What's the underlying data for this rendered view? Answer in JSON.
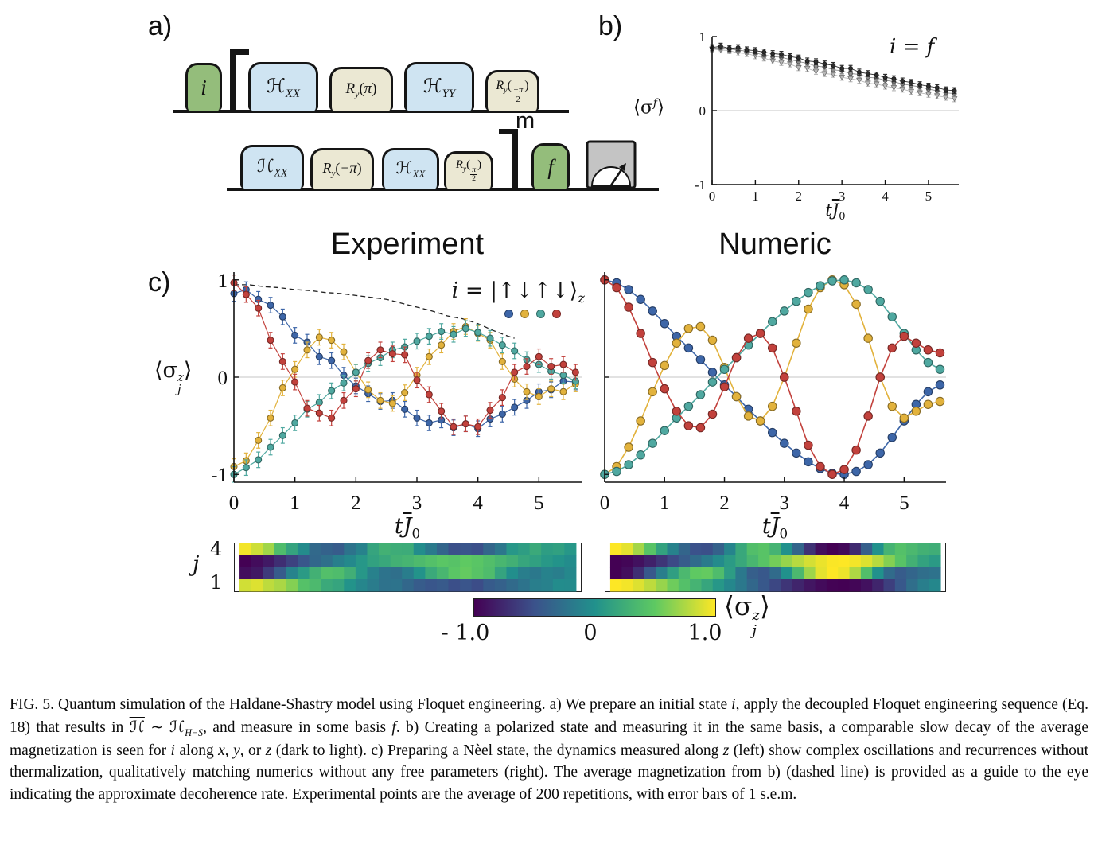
{
  "figure_label": {
    "a": "a)",
    "b": "b)",
    "c": "c)"
  },
  "pulse_sequence": {
    "initial_state": "i",
    "final_state": "f",
    "repeat_exponent": "m",
    "row1_pulses": [
      {
        "main": "ℋ",
        "sub": "XX"
      },
      {
        "main": "R",
        "sub": "y",
        "open": "(",
        "arg": "π",
        "close": ")"
      },
      {
        "main": "ℋ",
        "sub": "YY"
      },
      {
        "main": "R",
        "sub": "y",
        "open": "(",
        "num": "−π",
        "den": "2",
        "close": ")"
      }
    ],
    "row2_pulses": [
      {
        "main": "ℋ",
        "sub": "XX"
      },
      {
        "main": "R",
        "sub": "y",
        "open": "(",
        "arg": "−π",
        "close": ")"
      },
      {
        "main": "ℋ",
        "sub": "XX"
      },
      {
        "main": "R",
        "sub": "y",
        "open": "(",
        "num": "π",
        "den": "2",
        "close": ")"
      }
    ],
    "colors": {
      "state_pulse": "#94bd7b",
      "hamiltonian_pulse": "#cfe4f2",
      "rotation_pulse": "#ebe8d3",
      "meter_body": "#c4c4c4"
    }
  },
  "labels": {
    "titles": {
      "experiment": "Experiment",
      "numeric": "Numeric"
    },
    "sigma_f": {
      "pre": "⟨σ",
      "sup": "f",
      "post": "⟩"
    },
    "sigma_jz": {
      "pre": "⟨σ",
      "sup": "z",
      "sub": "j",
      "post": "⟩"
    },
    "t_axis": {
      "t": "t",
      "J": "J",
      "sub": "0"
    },
    "b_annotation": {
      "i": "i",
      "eq": " = ",
      "f": "f"
    },
    "legend": {
      "i": "i",
      "eq": " = |",
      "arrows": "↑↓↑↓",
      "ket": "⟩",
      "sub": "z"
    },
    "heat_axis": {
      "top": "4",
      "bottom": "1",
      "label": "j"
    },
    "colorbar_ticks": {
      "neg": "- 1.0",
      "zero": "0",
      "pos": "1.0"
    }
  },
  "chart_data": [
    {
      "id": "panel-b",
      "type": "scatter",
      "annotation": "i = f",
      "xlabel": "t J̄0",
      "ylabel": "⟨σ^f⟩",
      "xlim": [
        0,
        5.7
      ],
      "ylim": [
        -1,
        1
      ],
      "xticks": [
        0,
        1,
        2,
        3,
        4,
        5
      ],
      "yticks": [
        1,
        0,
        -1
      ],
      "grid": "zero line only",
      "x": [
        0,
        0.2,
        0.4,
        0.6,
        0.8,
        1,
        1.2,
        1.4,
        1.6,
        1.8,
        2,
        2.2,
        2.4,
        2.6,
        2.8,
        3,
        3.2,
        3.4,
        3.6,
        3.8,
        4,
        4.2,
        4.4,
        4.6,
        4.8,
        5,
        5.2,
        5.4,
        5.6
      ],
      "series": [
        {
          "name": "i along x (dark)",
          "color": "#2e2e2e",
          "marker": "circle",
          "values": [
            0.85,
            0.87,
            0.84,
            0.85,
            0.82,
            0.81,
            0.79,
            0.77,
            0.76,
            0.73,
            0.71,
            0.67,
            0.66,
            0.63,
            0.61,
            0.57,
            0.57,
            0.52,
            0.5,
            0.48,
            0.45,
            0.43,
            0.4,
            0.38,
            0.35,
            0.33,
            0.31,
            0.28,
            0.27
          ]
        },
        {
          "name": "i along y (medium)",
          "color": "#8d8d8d",
          "marker": "circle",
          "values": [
            0.84,
            0.85,
            0.83,
            0.82,
            0.8,
            0.78,
            0.75,
            0.73,
            0.72,
            0.69,
            0.66,
            0.64,
            0.6,
            0.59,
            0.55,
            0.54,
            0.5,
            0.49,
            0.45,
            0.44,
            0.41,
            0.39,
            0.36,
            0.34,
            0.32,
            0.29,
            0.27,
            0.24,
            0.23
          ]
        },
        {
          "name": "i along z (light)",
          "color": "#b9b9b9",
          "marker": "triangle-down",
          "values": [
            0.83,
            0.82,
            0.81,
            0.78,
            0.77,
            0.74,
            0.71,
            0.67,
            0.65,
            0.63,
            0.58,
            0.57,
            0.53,
            0.5,
            0.49,
            0.45,
            0.43,
            0.41,
            0.37,
            0.36,
            0.33,
            0.31,
            0.29,
            0.26,
            0.24,
            0.22,
            0.2,
            0.18,
            0.16
          ]
        }
      ],
      "error_bar": 0.04
    },
    {
      "id": "experiment",
      "type": "scatter",
      "title": "Experiment",
      "annotation": "i = |↑↓↑↓⟩z",
      "xlim": [
        0,
        5.7
      ],
      "ylim": [
        -1.08,
        1.08
      ],
      "xticks": [
        0,
        1,
        2,
        3,
        4,
        5
      ],
      "yticks": [
        1,
        0,
        -1
      ],
      "x": [
        0,
        0.2,
        0.4,
        0.6,
        0.8,
        1,
        1.2,
        1.4,
        1.6,
        1.8,
        2,
        2.2,
        2.4,
        2.6,
        2.8,
        3,
        3.2,
        3.4,
        3.6,
        3.8,
        4,
        4.2,
        4.4,
        4.6,
        4.8,
        5,
        5.2,
        5.4,
        5.6
      ],
      "series": [
        {
          "name": "site 1",
          "color": "#3d66a8",
          "values": [
            0.86,
            0.9,
            0.8,
            0.74,
            0.62,
            0.43,
            0.36,
            0.21,
            0.17,
            0.02,
            -0.09,
            -0.17,
            -0.25,
            -0.24,
            -0.33,
            -0.42,
            -0.47,
            -0.44,
            -0.52,
            -0.48,
            -0.53,
            -0.43,
            -0.38,
            -0.31,
            -0.24,
            -0.15,
            -0.13,
            -0.04,
            -0.05
          ]
        },
        {
          "name": "site 2",
          "color": "#e2b23c",
          "values": [
            -0.92,
            -0.86,
            -0.65,
            -0.42,
            -0.11,
            0.08,
            0.28,
            0.41,
            0.38,
            0.26,
            0.05,
            -0.13,
            -0.24,
            -0.27,
            -0.16,
            0.02,
            0.21,
            0.33,
            0.47,
            0.52,
            0.45,
            0.38,
            0.16,
            -0.02,
            -0.15,
            -0.2,
            -0.12,
            -0.15,
            -0.07
          ]
        },
        {
          "name": "site 3",
          "color": "#4fa8a0",
          "values": [
            -1,
            -0.93,
            -0.85,
            -0.72,
            -0.6,
            -0.47,
            -0.33,
            -0.26,
            -0.14,
            -0.06,
            0.05,
            0.14,
            0.2,
            0.28,
            0.31,
            0.37,
            0.42,
            0.47,
            0.44,
            0.5,
            0.46,
            0.4,
            0.33,
            0.27,
            0.18,
            0.13,
            0.06,
            0.02,
            -0.04
          ]
        },
        {
          "name": "site 4",
          "color": "#c2413c",
          "values": [
            0.97,
            0.85,
            0.71,
            0.38,
            0.16,
            -0.05,
            -0.32,
            -0.37,
            -0.42,
            -0.24,
            -0.12,
            0.17,
            0.28,
            0.24,
            0.23,
            -0.03,
            -0.18,
            -0.35,
            -0.51,
            -0.48,
            -0.51,
            -0.34,
            -0.21,
            0.05,
            0.11,
            0.21,
            0.11,
            0.13,
            0.05
          ]
        }
      ],
      "error_bar": 0.08,
      "guide_line": {
        "style": "dashed",
        "color": "#222222",
        "x": [
          0,
          0.25,
          0.5,
          0.75,
          1,
          1.25,
          1.5,
          1.75,
          2,
          2.25,
          2.5,
          2.75,
          3,
          3.25,
          3.5,
          3.75,
          4,
          4.25,
          4.5,
          4.6
        ],
        "values": [
          0.95,
          0.95,
          0.93,
          0.92,
          0.9,
          0.89,
          0.87,
          0.86,
          0.84,
          0.82,
          0.8,
          0.76,
          0.72,
          0.68,
          0.63,
          0.6,
          0.55,
          0.48,
          0.42,
          0.4
        ]
      }
    },
    {
      "id": "numeric",
      "type": "line",
      "title": "Numeric",
      "xlim": [
        0,
        5.7
      ],
      "ylim": [
        -1.08,
        1.08
      ],
      "xticks": [
        0,
        1,
        2,
        3,
        4,
        5
      ],
      "yticks": [
        1,
        0,
        -1
      ],
      "x": [
        0,
        0.2,
        0.4,
        0.6,
        0.8,
        1,
        1.2,
        1.4,
        1.6,
        1.8,
        2,
        2.2,
        2.4,
        2.6,
        2.8,
        3,
        3.2,
        3.4,
        3.6,
        3.8,
        4,
        4.2,
        4.4,
        4.6,
        4.8,
        5,
        5.2,
        5.4,
        5.6
      ],
      "series": [
        {
          "name": "site 1",
          "color": "#3d66a8",
          "values": [
            1,
            0.97,
            0.9,
            0.8,
            0.68,
            0.55,
            0.42,
            0.3,
            0.18,
            0.05,
            -0.08,
            -0.2,
            -0.33,
            -0.45,
            -0.57,
            -0.68,
            -0.78,
            -0.87,
            -0.94,
            -0.99,
            -1,
            -0.97,
            -0.9,
            -0.78,
            -0.62,
            -0.45,
            -0.28,
            -0.15,
            -0.08
          ]
        },
        {
          "name": "site 2",
          "color": "#e2b23c",
          "values": [
            -1,
            -0.92,
            -0.72,
            -0.45,
            -0.15,
            0.12,
            0.35,
            0.5,
            0.52,
            0.38,
            0.1,
            -0.2,
            -0.4,
            -0.45,
            -0.3,
            0,
            0.35,
            0.7,
            0.92,
            1,
            0.95,
            0.75,
            0.4,
            0,
            -0.3,
            -0.42,
            -0.35,
            -0.28,
            -0.25
          ]
        },
        {
          "name": "site 3",
          "color": "#4fa8a0",
          "values": [
            -1,
            -0.97,
            -0.9,
            -0.8,
            -0.68,
            -0.55,
            -0.42,
            -0.3,
            -0.18,
            -0.05,
            0.08,
            0.2,
            0.33,
            0.45,
            0.57,
            0.68,
            0.78,
            0.87,
            0.94,
            0.99,
            1,
            0.97,
            0.9,
            0.78,
            0.62,
            0.45,
            0.28,
            0.15,
            0.08
          ]
        },
        {
          "name": "site 4",
          "color": "#c2413c",
          "values": [
            1,
            0.92,
            0.72,
            0.45,
            0.15,
            -0.12,
            -0.35,
            -0.5,
            -0.52,
            -0.38,
            -0.1,
            0.2,
            0.4,
            0.45,
            0.3,
            0,
            -0.35,
            -0.7,
            -0.92,
            -1,
            -0.95,
            -0.75,
            -0.4,
            0,
            0.3,
            0.42,
            0.35,
            0.28,
            0.25
          ]
        }
      ]
    },
    {
      "id": "heatmap-experiment",
      "type": "heatmap",
      "source": "experiment",
      "rows_top_to_bottom": [
        "site 4",
        "site 3",
        "site 2",
        "site 1"
      ],
      "row_axis": {
        "top": "4",
        "bottom": "1",
        "label": "j"
      },
      "vmin": -1,
      "vmax": 1,
      "colormap": "viridis"
    },
    {
      "id": "heatmap-numeric",
      "type": "heatmap",
      "source": "numeric",
      "rows_top_to_bottom": [
        "site 4",
        "site 3",
        "site 2",
        "site 1"
      ],
      "row_axis": {
        "top": "4",
        "bottom": "1",
        "label": "j"
      },
      "vmin": -1,
      "vmax": 1,
      "colormap": "viridis"
    },
    {
      "id": "colorbar",
      "type": "colorbar",
      "label": "⟨σ_j^z⟩",
      "ticks": [
        -1,
        0,
        1
      ],
      "stops": [
        "#440154",
        "#3b528b",
        "#21918c",
        "#5ec962",
        "#fde725"
      ]
    }
  ],
  "caption_segments": [
    {
      "t": "FIG. 5.  Quantum simulation of the Haldane-Shastry model using Floquet engineering.  a) We prepare an initial state "
    },
    {
      "t": "i",
      "s": "i"
    },
    {
      "t": ", apply the decoupled Floquet engineering sequence (Eq. 18) that results in "
    },
    {
      "t": "ℋ",
      "s": "hol"
    },
    {
      "t": " ∼ "
    },
    {
      "t": "ℋ",
      "s": "h"
    },
    {
      "t": "H−S",
      "s": "sub"
    },
    {
      "t": ", and measure in some basis "
    },
    {
      "t": "f",
      "s": "i"
    },
    {
      "t": ".  b) Creating a polarized state and measuring it in the same basis, a comparable slow decay of the average magnetization is seen for "
    },
    {
      "t": "i",
      "s": "i"
    },
    {
      "t": " along "
    },
    {
      "t": "x",
      "s": "i"
    },
    {
      "t": ", "
    },
    {
      "t": "y",
      "s": "i"
    },
    {
      "t": ", or "
    },
    {
      "t": "z",
      "s": "i"
    },
    {
      "t": " (dark to light).  c) Preparing a Nèel state, the dynamics measured along "
    },
    {
      "t": "z",
      "s": "i"
    },
    {
      "t": " (left) show complex oscillations and recurrences without thermalization, qualitatively matching numerics without any free parameters (right).  The average magnetization from b) (dashed line) is provided as a guide to the eye indicating the approximate decoherence rate.  Experimental points are the average of 200 repetitions, with error bars of 1 s.e.m."
    }
  ]
}
